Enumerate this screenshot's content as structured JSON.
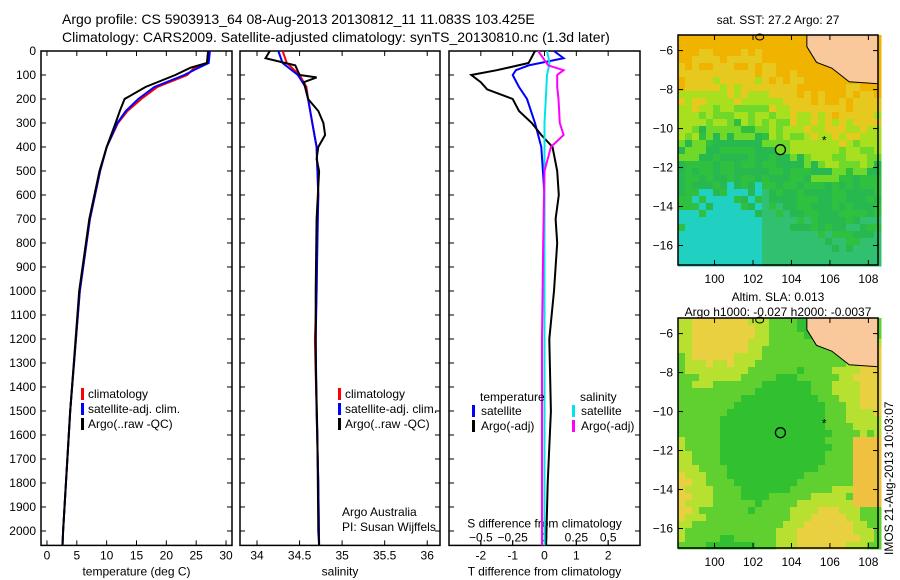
{
  "header": {
    "title_line1": "Argo profile: CS 5903913_64 08-Aug-2013 20130812_11 11.083S 103.425E",
    "title_line2": "Climatology: CARS2009. Satellite-adjusted climatology: synTS_20130810.nc (1.3d later)"
  },
  "watermark": "IMOS 21-Aug-2013 10:03:07",
  "chart_data": [
    {
      "type": "line",
      "xlabel": "temperature (deg C)",
      "xlim": [
        -1,
        31
      ],
      "ylim": [
        2060,
        0
      ],
      "xticks": [
        "0",
        "5",
        "10",
        "15",
        "20",
        "25",
        "30"
      ],
      "yticks": [
        "0",
        "100",
        "200",
        "300",
        "400",
        "500",
        "600",
        "700",
        "800",
        "900",
        "1000",
        "1100",
        "1200",
        "1300",
        "1400",
        "1500",
        "1600",
        "1700",
        "1800",
        "1900",
        "2000"
      ],
      "legend": [
        "climatology",
        "satellite-adj. clim.",
        "Argo(..raw -QC)"
      ],
      "series": [
        {
          "name": "climatology",
          "color": "#ff0000",
          "depth": [
            0,
            50,
            75,
            100,
            150,
            200,
            250,
            300,
            400,
            500,
            700,
            1000,
            1500,
            2000,
            2060
          ],
          "values": [
            27.2,
            27.0,
            24.5,
            23.5,
            18.5,
            15.8,
            13.5,
            11.9,
            10.0,
            8.9,
            7.2,
            5.5,
            3.9,
            2.7,
            2.6
          ]
        },
        {
          "name": "satellite-adj. clim.",
          "color": "#0000ff",
          "depth": [
            0,
            50,
            75,
            100,
            150,
            200,
            250,
            300,
            400,
            500,
            700,
            1000,
            1500,
            2000,
            2060
          ],
          "values": [
            27.3,
            27.1,
            25.0,
            23.0,
            18.0,
            15.3,
            13.2,
            11.8,
            10.0,
            8.9,
            7.2,
            5.5,
            3.9,
            2.7,
            2.6
          ]
        },
        {
          "name": "Argo(..raw -QC)",
          "color": "#000000",
          "depth": [
            0,
            50,
            70,
            100,
            150,
            200,
            250,
            300,
            400,
            500,
            700,
            1000,
            1500,
            2000,
            2060
          ],
          "values": [
            27.0,
            26.8,
            24.0,
            21.5,
            16.5,
            13.0,
            12.2,
            11.5,
            10.0,
            8.8,
            7.1,
            5.4,
            3.9,
            2.7,
            2.6
          ]
        }
      ]
    },
    {
      "type": "line",
      "xlabel": "salinity",
      "xlim": [
        33.8,
        36.15
      ],
      "ylim": [
        2060,
        0
      ],
      "xticks": [
        "34",
        "34.5",
        "35",
        "35.5",
        "36"
      ],
      "legend": [
        "climatology",
        "satellite-adj. clim.",
        "Argo(..raw -QC)"
      ],
      "annotation_line1": "Argo Australia",
      "annotation_line2": "PI: Susan Wijffels",
      "series": [
        {
          "name": "climatology",
          "color": "#ff0000",
          "depth": [
            0,
            50,
            100,
            150,
            200,
            300,
            400,
            600,
            800,
            1000,
            1200,
            1500,
            1800,
            2060
          ],
          "values": [
            34.3,
            34.35,
            34.5,
            34.58,
            34.6,
            34.65,
            34.7,
            34.72,
            34.7,
            34.7,
            34.68,
            34.7,
            34.72,
            34.73
          ]
        },
        {
          "name": "satellite-adj. clim.",
          "color": "#0000ff",
          "depth": [
            0,
            50,
            100,
            150,
            200,
            300,
            400,
            600,
            800,
            1000,
            1200,
            1500,
            1800,
            2060
          ],
          "values": [
            34.25,
            34.3,
            34.48,
            34.57,
            34.6,
            34.65,
            34.7,
            34.72,
            34.71,
            34.7,
            34.69,
            34.7,
            34.72,
            34.73
          ]
        },
        {
          "name": "Argo(..raw -QC)",
          "color": "#000000",
          "depth": [
            0,
            30,
            60,
            100,
            110,
            130,
            200,
            250,
            300,
            350,
            400,
            450,
            500,
            700,
            1000,
            1300,
            1600,
            2000,
            2060
          ],
          "values": [
            34.15,
            34.1,
            34.45,
            34.5,
            34.7,
            34.55,
            34.6,
            34.72,
            34.78,
            34.8,
            34.72,
            34.7,
            34.73,
            34.7,
            34.69,
            34.69,
            34.71,
            34.72,
            34.73
          ]
        }
      ]
    },
    {
      "type": "line",
      "xlabel": "T difference from climatology",
      "x2label": "S difference from climatology",
      "xlim": [
        -3,
        3
      ],
      "x2lim": [
        -0.75,
        0.75
      ],
      "ylim": [
        2060,
        0
      ],
      "xticks": [
        "-2",
        "-1",
        "0",
        "1",
        "2"
      ],
      "x2ticks": [
        "-0.5",
        "-0.25",
        "0",
        "0.25",
        "0.5"
      ],
      "legend_temperature_title": "temperature",
      "legend_salinity_title": "salinity",
      "legend": [
        "satellite",
        "Argo(-adj)",
        "satellite",
        "Argo(-adj)"
      ],
      "series": [
        {
          "name": "temperature satellite",
          "color": "#0000ff",
          "axis": "T",
          "depth": [
            0,
            30,
            60,
            80,
            100,
            150,
            200,
            300,
            400,
            600,
            1000,
            1500,
            2060
          ],
          "values": [
            0.3,
            0.6,
            -0.5,
            -0.9,
            -1.0,
            -0.8,
            -0.55,
            -0.3,
            -0.1,
            0,
            0,
            0,
            0
          ]
        },
        {
          "name": "temperature Argo(-adj)",
          "color": "#000000",
          "axis": "T",
          "depth": [
            0,
            50,
            80,
            100,
            130,
            160,
            200,
            250,
            300,
            350,
            400,
            500,
            600,
            700,
            800,
            900,
            1000,
            1200,
            1500,
            1800,
            2060
          ],
          "values": [
            -0.3,
            -0.5,
            -1.5,
            -2.3,
            -2.0,
            -1.8,
            -1.0,
            -0.8,
            -0.4,
            -0.1,
            0.25,
            0.4,
            0.45,
            0.35,
            0.4,
            0.35,
            0.3,
            0.15,
            0.2,
            0.1,
            0.05
          ]
        },
        {
          "name": "salinity satellite",
          "color": "#00e5e5",
          "axis": "S",
          "depth": [
            0,
            50,
            100,
            200,
            300,
            400,
            600,
            1000,
            1500,
            2060
          ],
          "values": [
            0.02,
            0.04,
            0.02,
            0.01,
            0.0,
            0.0,
            0.0,
            0.0,
            0.0,
            0.0
          ]
        },
        {
          "name": "salinity Argo(-adj)",
          "color": "#ff00ff",
          "axis": "S",
          "depth": [
            0,
            60,
            80,
            100,
            150,
            200,
            300,
            350,
            400,
            500,
            800,
            1200,
            1500,
            2060
          ],
          "values": [
            -0.05,
            0.03,
            0.15,
            0.1,
            0.1,
            0.11,
            0.12,
            0.15,
            0.05,
            0.0,
            -0.01,
            -0.02,
            -0.02,
            -0.02
          ]
        }
      ]
    },
    {
      "type": "heatmap",
      "title": "sat. SST: 27.2 Argo: 27",
      "xticks": [
        "100",
        "102",
        "104",
        "106",
        "108"
      ],
      "yticks": [
        "-6",
        "-8",
        "-10",
        "-12",
        "-14",
        "-16"
      ],
      "xlim": [
        98.1,
        108.5
      ],
      "ylim": [
        -17.0,
        -5.2
      ],
      "argo_position": [
        103.425,
        -11.083
      ]
    },
    {
      "type": "heatmap",
      "title_line1": "Altim. SLA: 0.013",
      "title_line2": "Argo h1000: -0.027 h2000: -0.0037",
      "xticks": [
        "100",
        "102",
        "104",
        "106",
        "108"
      ],
      "yticks": [
        "-6",
        "-8",
        "-10",
        "-12",
        "-14",
        "-16"
      ],
      "xlim": [
        98.1,
        108.5
      ],
      "ylim": [
        -17.0,
        -5.2
      ],
      "argo_position": [
        103.425,
        -11.083
      ]
    }
  ]
}
